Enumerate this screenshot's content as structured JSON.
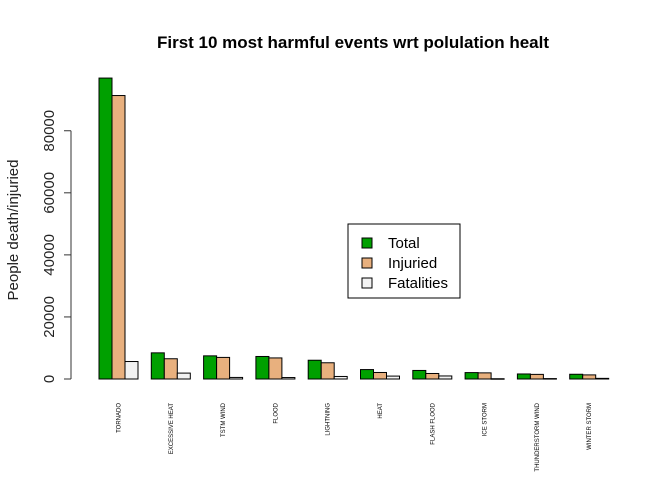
{
  "chart_data": {
    "type": "bar",
    "title": "First 10 most harmful events wrt polulation healt",
    "xlabel": "",
    "ylabel": "People death/injuried",
    "categories": [
      "TORNADO",
      "EXCESSIVE HEAT",
      "TSTM WIND",
      "FLOOD",
      "LIGHTNING",
      "HEAT",
      "FLASH FLOOD",
      "ICE STORM",
      "THUNDERSTORM WIND",
      "WINTER STORM"
    ],
    "series": [
      {
        "name": "Total",
        "color": "#00a000",
        "values": [
          96979,
          8428,
          7461,
          7259,
          6046,
          3037,
          2755,
          2064,
          1621,
          1527
        ]
      },
      {
        "name": "Injuried",
        "color": "#e8b07e",
        "values": [
          91346,
          6525,
          6957,
          6789,
          5230,
          2100,
          1777,
          1975,
          1488,
          1321
        ]
      },
      {
        "name": "Fatalities",
        "color": "#f2f2f2",
        "values": [
          5633,
          1903,
          504,
          470,
          816,
          937,
          978,
          89,
          133,
          206
        ]
      }
    ],
    "ylim": [
      0,
      97000
    ],
    "yticks": [
      0,
      20000,
      40000,
      60000,
      80000
    ],
    "legend_position": "center-right",
    "grid": false
  }
}
